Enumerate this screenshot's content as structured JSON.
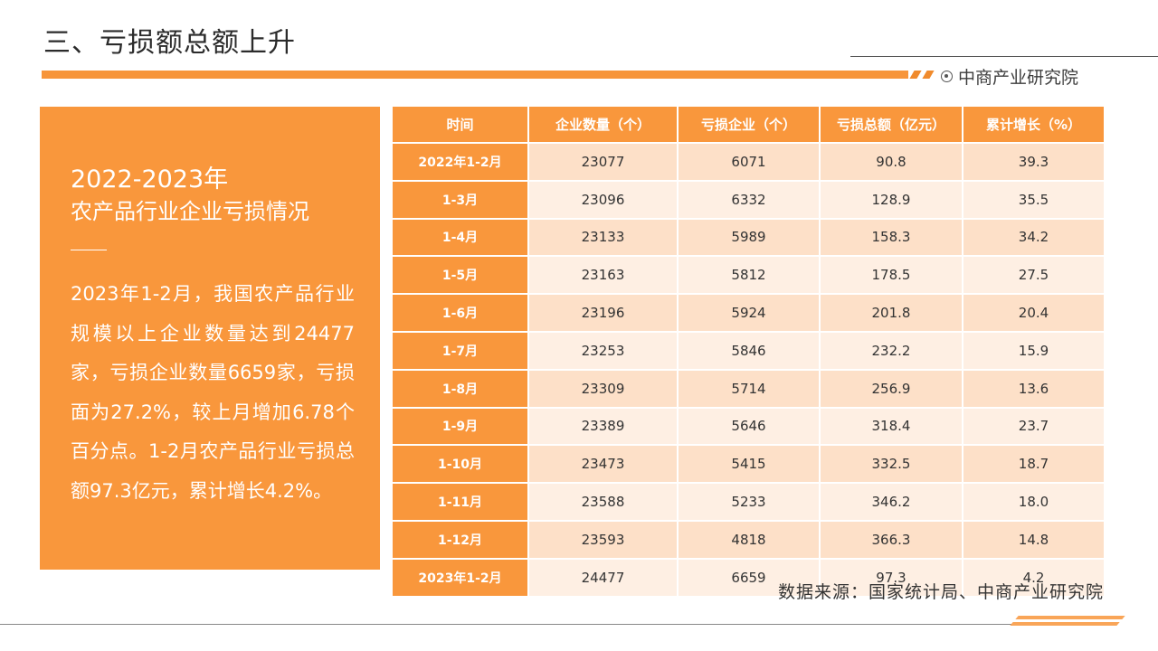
{
  "page": {
    "title": "三、亏损额总额上升",
    "brand": "中商产业研究院"
  },
  "panel": {
    "year": "2022-2023年",
    "subtitle": "农产品行业企业亏损情况",
    "body": "2023年1-2月，我国农产品行业规模以上企业数量达到24477家，亏损企业数量6659家，亏损面为27.2%，较上月增加6.78个百分点。1-2月农产品行业亏损总额97.3亿元，累计增长4.2%。"
  },
  "table": {
    "headers": [
      "时间",
      "企业数量（个）",
      "亏损企业（个）",
      "亏损总额（亿元）",
      "累计增长（%）"
    ],
    "rows": [
      [
        "2022年1-2月",
        "23077",
        "6071",
        "90.8",
        "39.3"
      ],
      [
        "1-3月",
        "23096",
        "6332",
        "128.9",
        "35.5"
      ],
      [
        "1-4月",
        "23133",
        "5989",
        "158.3",
        "34.2"
      ],
      [
        "1-5月",
        "23163",
        "5812",
        "178.5",
        "27.5"
      ],
      [
        "1-6月",
        "23196",
        "5924",
        "201.8",
        "20.4"
      ],
      [
        "1-7月",
        "23253",
        "5846",
        "232.2",
        "15.9"
      ],
      [
        "1-8月",
        "23309",
        "5714",
        "256.9",
        "13.6"
      ],
      [
        "1-9月",
        "23389",
        "5646",
        "318.4",
        "23.7"
      ],
      [
        "1-10月",
        "23473",
        "5415",
        "332.5",
        "18.7"
      ],
      [
        "1-11月",
        "23588",
        "5233",
        "346.2",
        "18.0"
      ],
      [
        "1-12月",
        "23593",
        "4818",
        "366.3",
        "14.8"
      ],
      [
        "2023年1-2月",
        "24477",
        "6659",
        "97.3",
        "4.2"
      ]
    ]
  },
  "source": "数据来源：国家统计局、中商产业研究院",
  "colors": {
    "accent": "#f9973c",
    "row_odd": "#fde0c8",
    "row_even": "#feefe3"
  }
}
